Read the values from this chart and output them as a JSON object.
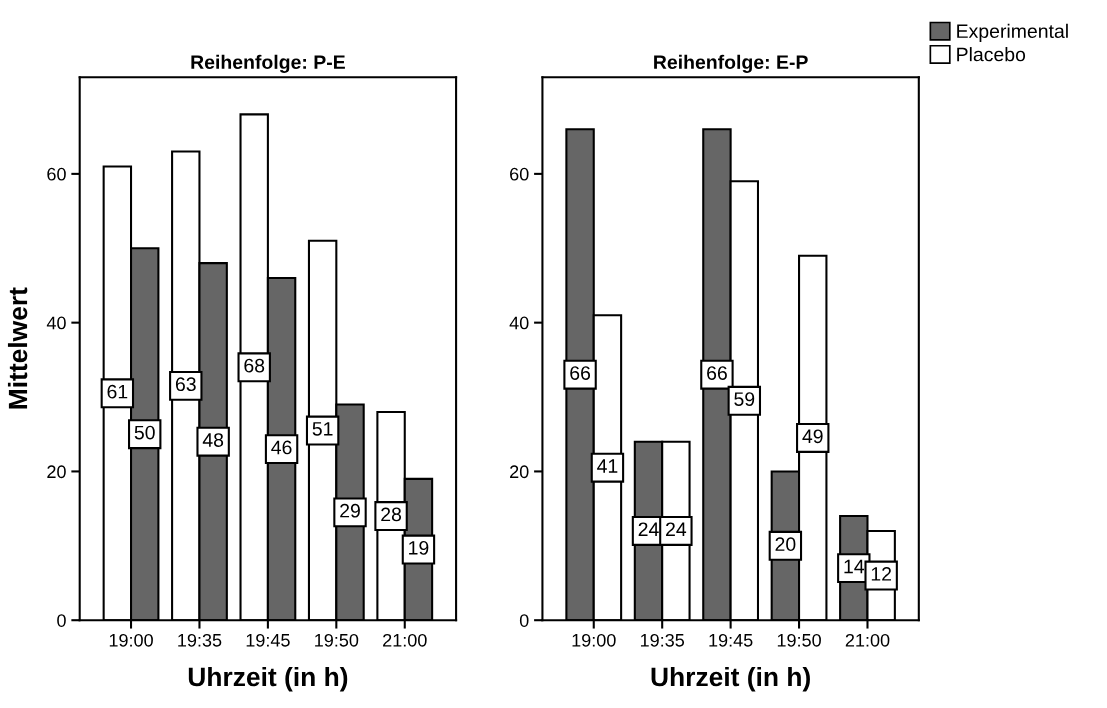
{
  "chart_data": [
    {
      "type": "bar",
      "title": "Reihenfolge: P-E",
      "xlabel": "Uhrzeit (in h)",
      "ylabel": "Mittelwert",
      "categories": [
        "19:00",
        "19:35",
        "19:45",
        "19:50",
        "21:00"
      ],
      "series": [
        {
          "color": "#ffffff",
          "values": [
            61,
            63,
            68,
            51,
            28
          ]
        },
        {
          "color": "#666666",
          "values": [
            50,
            48,
            46,
            29,
            19
          ]
        }
      ],
      "ylim": [
        0,
        73
      ],
      "yticks": [
        0,
        20,
        40,
        60
      ],
      "data_labels": true,
      "grid": false
    },
    {
      "type": "bar",
      "title": "Reihenfolge: E-P",
      "xlabel": "Uhrzeit (in h)",
      "categories": [
        "19:00",
        "19:35",
        "19:45",
        "19:50",
        "21:00"
      ],
      "series": [
        {
          "name": "Experimental",
          "color": "#666666",
          "values": [
            66,
            24,
            66,
            20,
            14
          ]
        },
        {
          "name": "Placebo",
          "color": "#ffffff",
          "values": [
            41,
            24,
            59,
            49,
            12
          ]
        }
      ],
      "ylim": [
        0,
        73
      ],
      "yticks": [
        0,
        20,
        40,
        60
      ],
      "data_labels": true,
      "grid": false,
      "legend": "top right"
    }
  ]
}
